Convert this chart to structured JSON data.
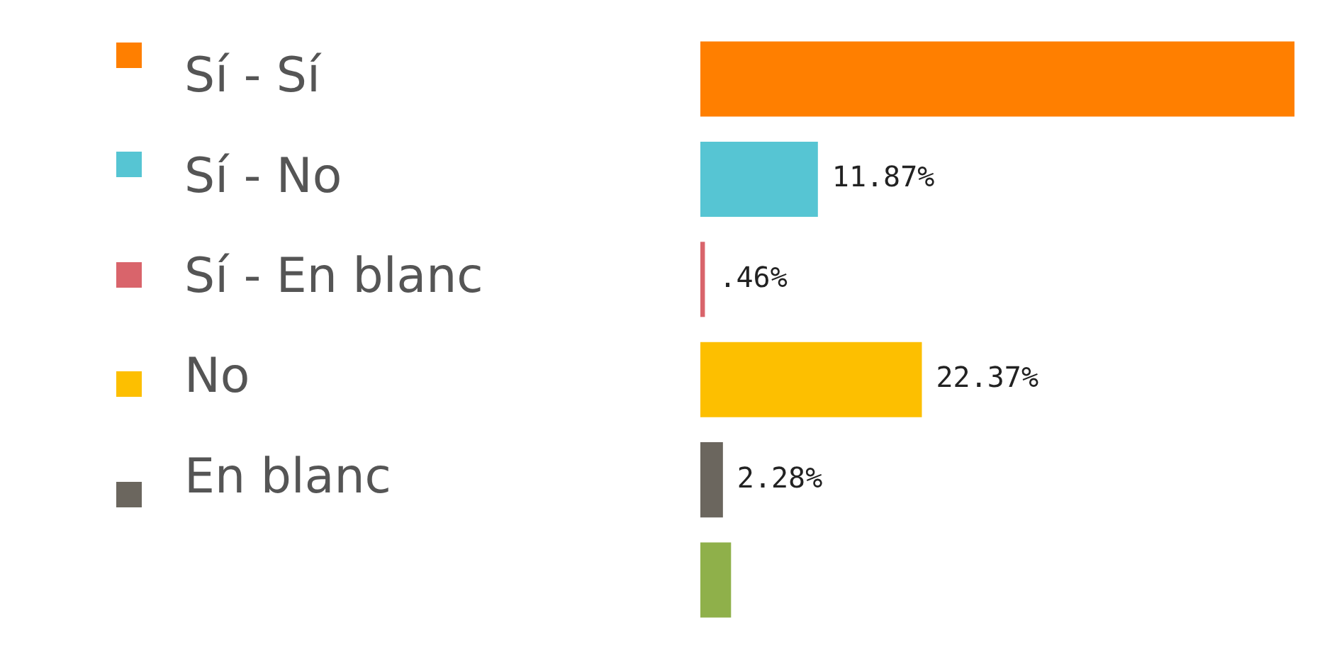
{
  "chart_data": {
    "type": "bar",
    "orientation": "horizontal",
    "categories": [
      "Sí - Sí",
      "Sí - No",
      "Sí - En blanc",
      "No",
      "En blanc",
      null
    ],
    "values": [
      60,
      11.87,
      0.46,
      22.37,
      2.28,
      3.1
    ],
    "colors": [
      "#ff7f00",
      "#56c5d3",
      "#d9646b",
      "#fdbf00",
      "#6b665e",
      "#8fb04a"
    ],
    "value_labels": [
      null,
      "11.87%",
      ".46%",
      "22.37%",
      "2.28%",
      null
    ],
    "xlim": [
      0,
      65
    ],
    "tick_labels": "y"
  }
}
